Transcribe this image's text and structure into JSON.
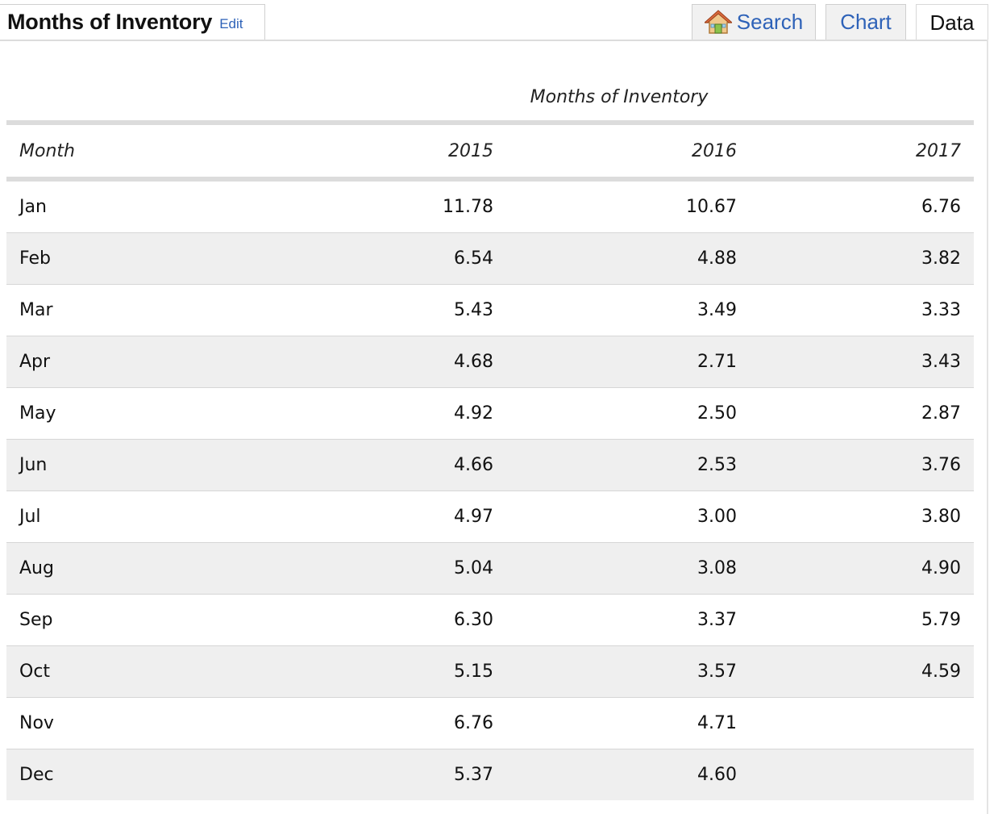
{
  "header": {
    "title": "Months of Inventory",
    "edit_label": "Edit"
  },
  "tabs": {
    "search_label": "Search",
    "search_icon": "home-icon",
    "chart_label": "Chart",
    "data_label": "Data",
    "active": "Data"
  },
  "colors": {
    "link": "#2e62b8",
    "row_alt": "#efefef",
    "rule": "#dcdcdc"
  },
  "table": {
    "caption": "Months of Inventory",
    "columns": [
      "Month",
      "2015",
      "2016",
      "2017"
    ],
    "rows": [
      {
        "month": "Jan",
        "y2015": "11.78",
        "y2016": "10.67",
        "y2017": "6.76"
      },
      {
        "month": "Feb",
        "y2015": "6.54",
        "y2016": "4.88",
        "y2017": "3.82"
      },
      {
        "month": "Mar",
        "y2015": "5.43",
        "y2016": "3.49",
        "y2017": "3.33"
      },
      {
        "month": "Apr",
        "y2015": "4.68",
        "y2016": "2.71",
        "y2017": "3.43"
      },
      {
        "month": "May",
        "y2015": "4.92",
        "y2016": "2.50",
        "y2017": "2.87"
      },
      {
        "month": "Jun",
        "y2015": "4.66",
        "y2016": "2.53",
        "y2017": "3.76"
      },
      {
        "month": "Jul",
        "y2015": "4.97",
        "y2016": "3.00",
        "y2017": "3.80"
      },
      {
        "month": "Aug",
        "y2015": "5.04",
        "y2016": "3.08",
        "y2017": "4.90"
      },
      {
        "month": "Sep",
        "y2015": "6.30",
        "y2016": "3.37",
        "y2017": "5.79"
      },
      {
        "month": "Oct",
        "y2015": "5.15",
        "y2016": "3.57",
        "y2017": "4.59"
      },
      {
        "month": "Nov",
        "y2015": "6.76",
        "y2016": "4.71",
        "y2017": ""
      },
      {
        "month": "Dec",
        "y2015": "5.37",
        "y2016": "4.60",
        "y2017": ""
      }
    ]
  }
}
